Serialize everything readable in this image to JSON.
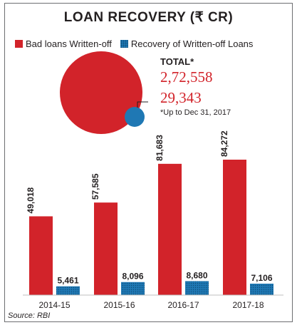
{
  "title": "LOAN RECOVERY (₹ CR)",
  "legend": {
    "bad": "Bad loans Written-off",
    "recovery": "Recovery of Written-off Loans"
  },
  "totals": {
    "label": "TOTAL*",
    "bad": "2,72,558",
    "recovery": "29,343",
    "note": "*Up to Dec 31, 2017"
  },
  "source": "Source: RBI",
  "colors": {
    "bad": "#d2232a",
    "recovery": "#1f78b4"
  },
  "chart_data": {
    "type": "bar",
    "categories": [
      "2014-15",
      "2015-16",
      "2016-17",
      "2017-18"
    ],
    "series": [
      {
        "name": "Bad loans Written-off",
        "values": [
          49018,
          57585,
          81683,
          84272
        ],
        "labels": [
          "49,018",
          "57,585",
          "81,683",
          "84,272"
        ]
      },
      {
        "name": "Recovery of Written-off Loans",
        "values": [
          5461,
          8096,
          8680,
          7106
        ],
        "labels": [
          "5,461",
          "8,096",
          "8,680",
          "7,106"
        ]
      }
    ],
    "ylim": [
      0,
      100000
    ],
    "grid": false
  }
}
